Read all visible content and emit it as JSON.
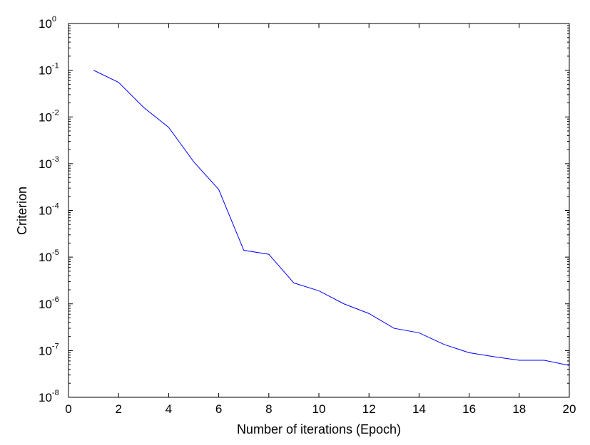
{
  "chart_data": {
    "type": "line",
    "title": "",
    "xlabel": "Number of iterations (Epoch)",
    "ylabel": "Criterion",
    "xlim": [
      0,
      20
    ],
    "ylim": [
      1e-08,
      1
    ],
    "yscale": "log",
    "grid": false,
    "legend": "none",
    "xticks": [
      0,
      2,
      4,
      6,
      8,
      10,
      12,
      14,
      16,
      18,
      20
    ],
    "xtick_labels": [
      "0",
      "2",
      "4",
      "6",
      "8",
      "10",
      "12",
      "14",
      "16",
      "18",
      "20"
    ],
    "yticks": [
      1e-08,
      1e-07,
      1e-06,
      1e-05,
      0.0001,
      0.001,
      0.01,
      0.1,
      1
    ],
    "ytick_labels": [
      {
        "base": "10",
        "exp": "-8"
      },
      {
        "base": "10",
        "exp": "-7"
      },
      {
        "base": "10",
        "exp": "-6"
      },
      {
        "base": "10",
        "exp": "-5"
      },
      {
        "base": "10",
        "exp": "-4"
      },
      {
        "base": "10",
        "exp": "-3"
      },
      {
        "base": "10",
        "exp": "-2"
      },
      {
        "base": "10",
        "exp": "-1"
      },
      {
        "base": "10",
        "exp": "0"
      }
    ],
    "series": [
      {
        "color": "#0000ff",
        "x": [
          1,
          2,
          3,
          4,
          5,
          6,
          7,
          8,
          9,
          10,
          11,
          12,
          13,
          14,
          15,
          16,
          17,
          18,
          19,
          20
        ],
        "y": [
          0.1,
          0.055,
          0.016,
          0.006,
          0.0011,
          0.00028,
          1.4e-05,
          1.15e-05,
          2.8e-06,
          1.9e-06,
          1e-06,
          6.2e-07,
          3e-07,
          2.4e-07,
          1.35e-07,
          9e-08,
          7.4e-08,
          6.2e-08,
          6.2e-08,
          4.8e-08
        ]
      }
    ]
  }
}
